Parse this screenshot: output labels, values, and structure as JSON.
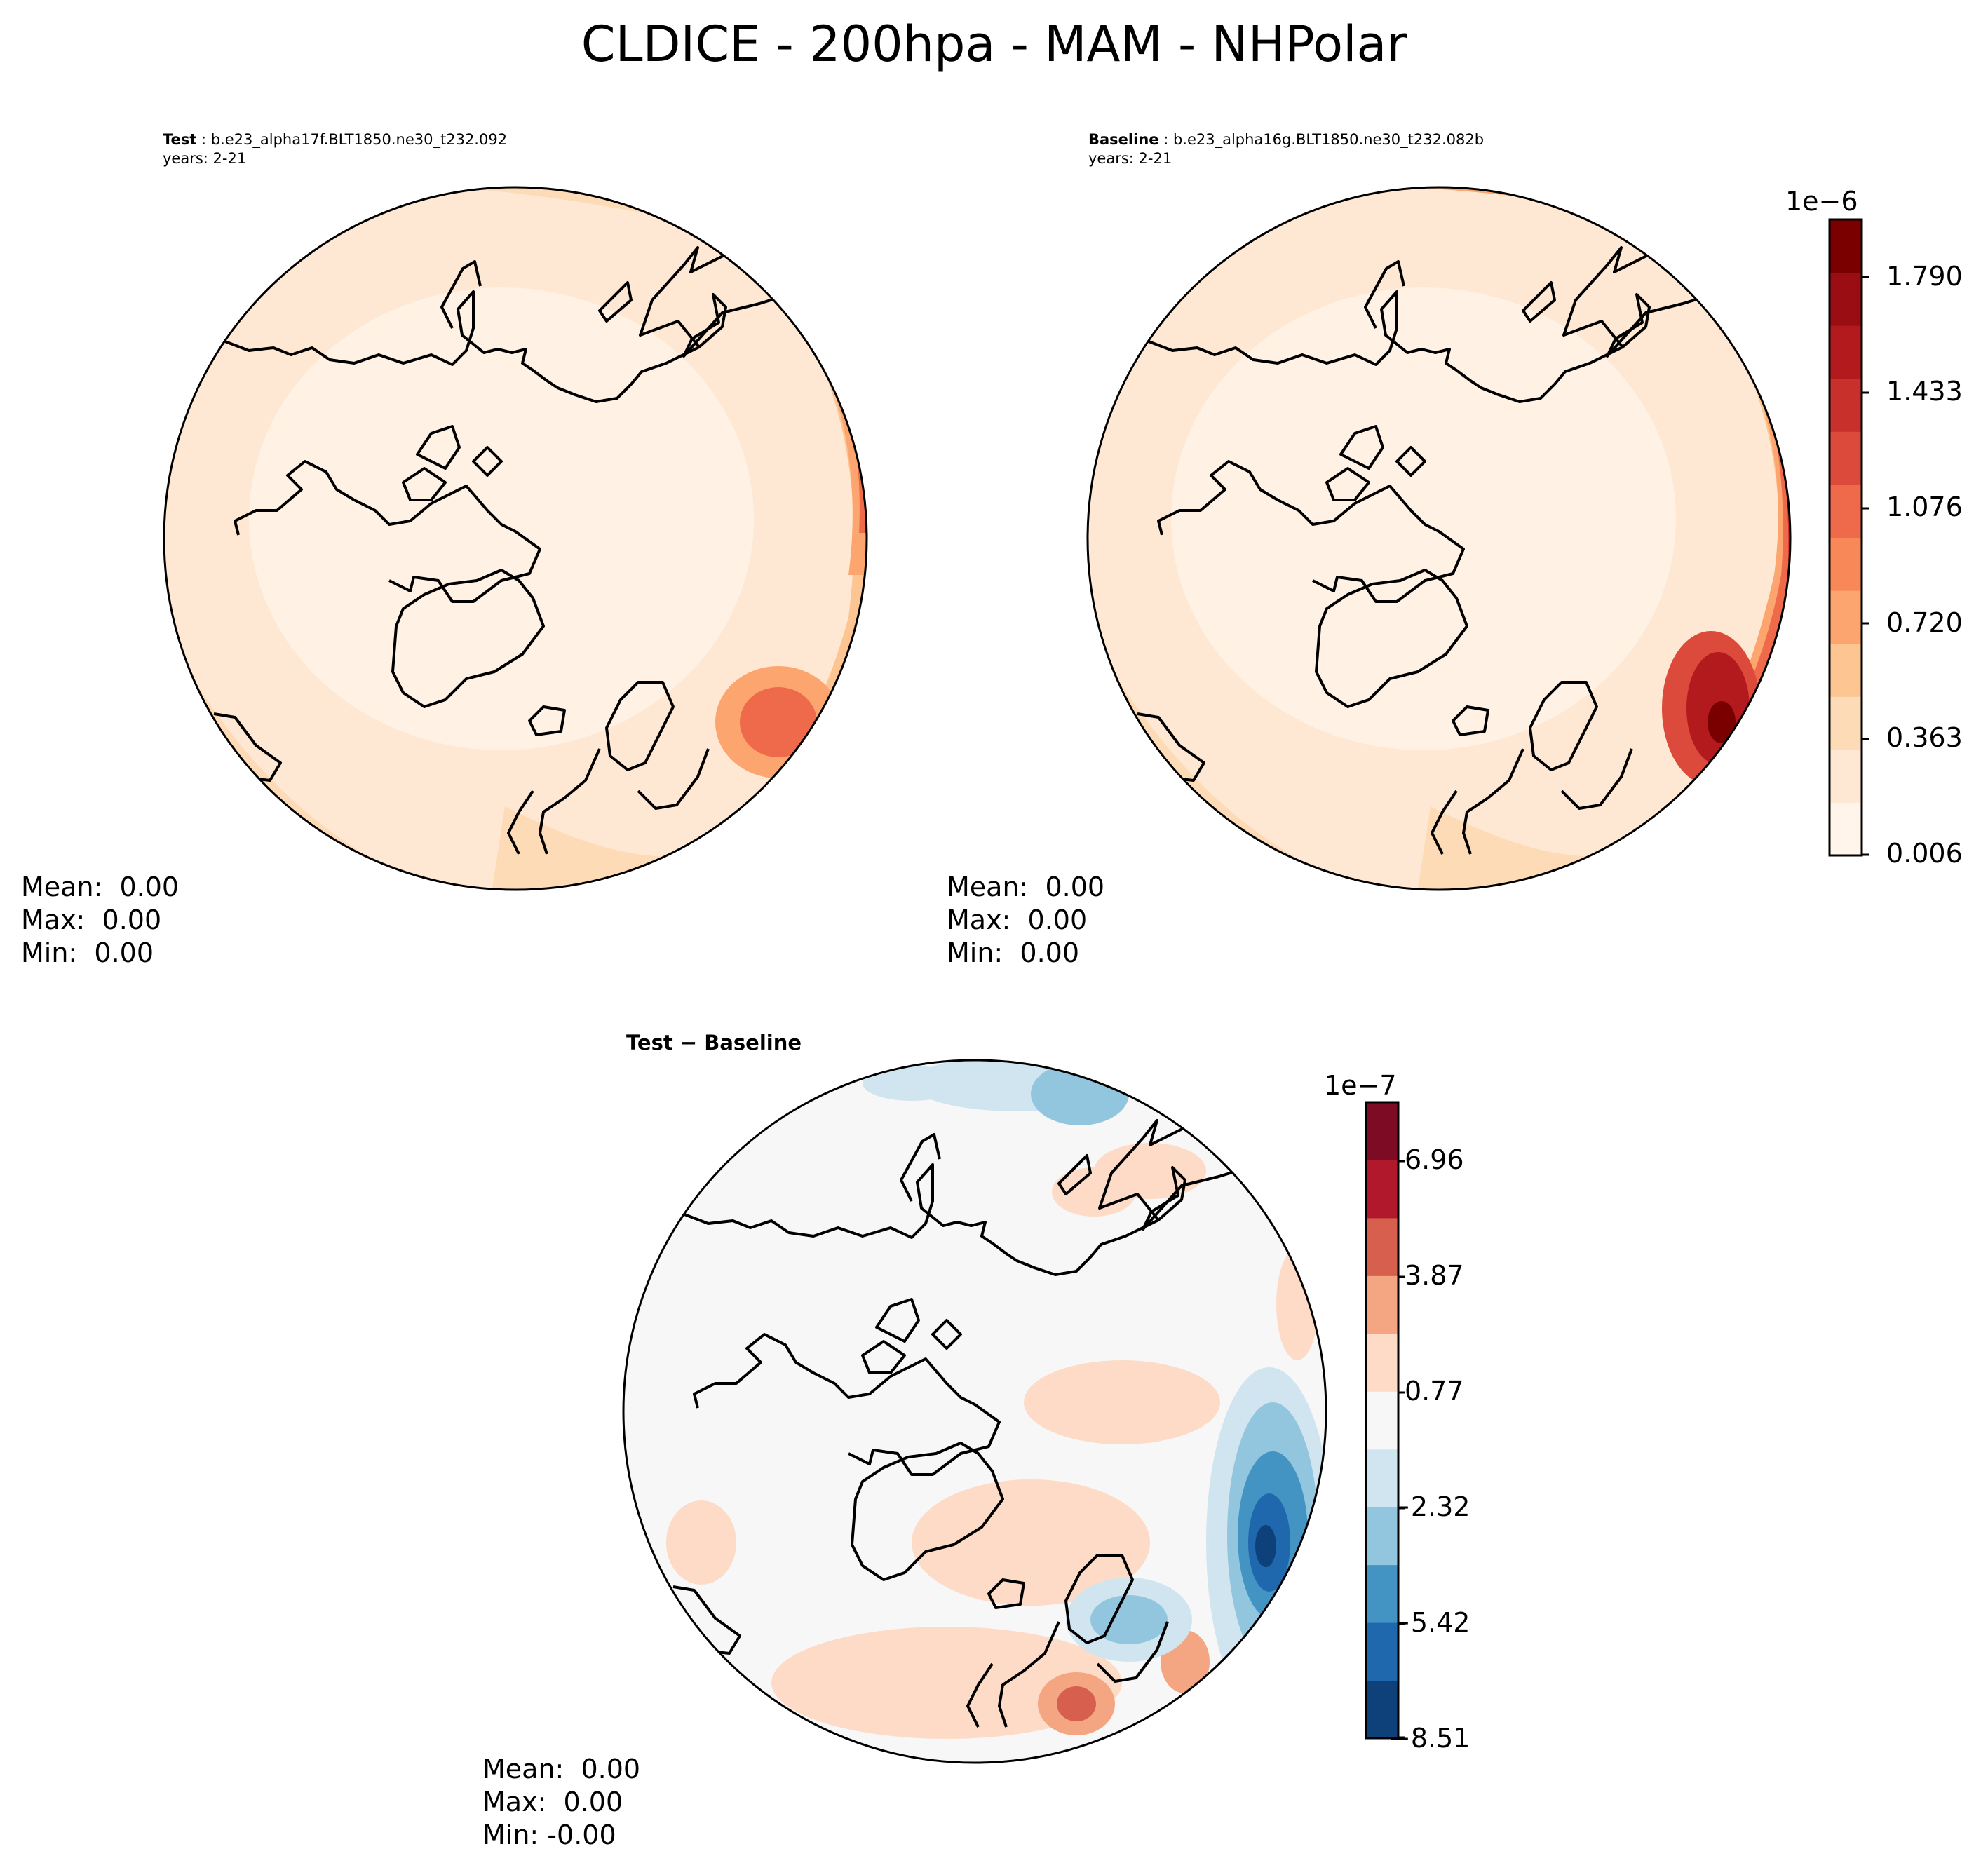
{
  "title": "CLDICE - 200hpa - MAM - NHPolar",
  "panels": [
    {
      "id": "test",
      "label_bold": "Test",
      "label_rest": " : b.e23_alpha17f.BLT1850.ne30_t232.092",
      "years": "years: 2-21",
      "stats": {
        "mean": "Mean:  0.00",
        "max": "Max:  0.00",
        "min": "Min:  0.00"
      }
    },
    {
      "id": "baseline",
      "label_bold": "Baseline",
      "label_rest": " : b.e23_alpha16g.BLT1850.ne30_t232.082b",
      "years": "years: 2-21",
      "stats": {
        "mean": "Mean:  0.00",
        "max": "Max:  0.00",
        "min": "Min:  0.00"
      }
    },
    {
      "id": "diff",
      "label": "Test − Baseline",
      "stats": {
        "mean": "Mean:  0.00",
        "max": "Max:  0.00",
        "min": "Min: -0.00"
      }
    }
  ],
  "colorbar_main": {
    "exponent": "1e−6",
    "ticks": [
      "1.790",
      "1.433",
      "1.076",
      "0.720",
      "0.363",
      "0.006"
    ],
    "colors": [
      "#fff5ea",
      "#fee8d3",
      "#fddbb6",
      "#fdc591",
      "#fca56e",
      "#f98859",
      "#ef6a4b",
      "#dc4a3b",
      "#c8302b",
      "#b31a1e",
      "#9a0d13",
      "#7a0000"
    ]
  },
  "colorbar_diff": {
    "exponent": "1e−7",
    "ticks": [
      "6.96",
      "3.87",
      "0.77",
      "−2.32",
      "−5.42",
      "−8.51"
    ],
    "colors": [
      "#0e4179",
      "#2068ad",
      "#4393c3",
      "#92c5de",
      "#d1e5f0",
      "#f7f7f7",
      "#fddbc7",
      "#f4a582",
      "#d6604d",
      "#b2182b",
      "#7d0b23"
    ]
  }
}
